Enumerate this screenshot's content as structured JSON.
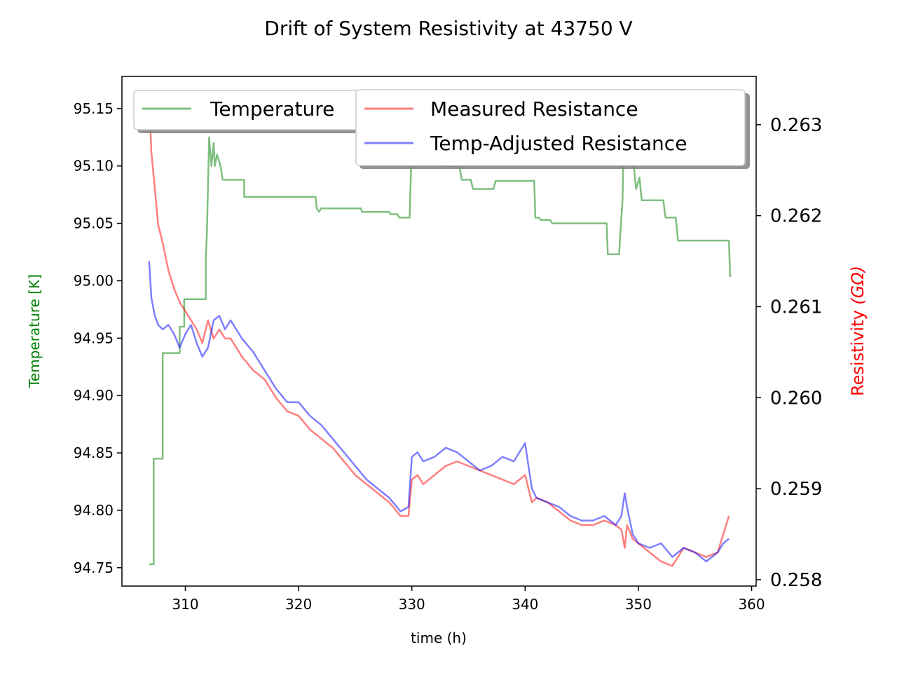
{
  "chart_data": {
    "type": "line",
    "title": "Drift of System Resistivity at 43750 V",
    "xlabel": "time (h)",
    "ylabel_left": "Temperature [K]",
    "ylabel_right_main": "Resistivity ",
    "ylabel_right_unit": "(GΩ)",
    "xlim": [
      304.4,
      360.4
    ],
    "ylim_left": [
      94.734,
      95.178
    ],
    "ylim_right": [
      0.25793,
      0.26353
    ],
    "x_ticks": [
      310,
      320,
      330,
      340,
      350,
      360
    ],
    "y_ticks_left": [
      94.75,
      94.8,
      94.85,
      94.9,
      94.95,
      95.0,
      95.05,
      95.1,
      95.15
    ],
    "y_ticks_right": [
      0.258,
      0.259,
      0.26,
      0.261,
      0.262,
      0.263
    ],
    "x_tick_labels": [
      "310",
      "320",
      "330",
      "340",
      "350",
      "360"
    ],
    "y_tick_labels_left": [
      "94.75",
      "94.80",
      "94.85",
      "94.90",
      "94.95",
      "95.00",
      "95.05",
      "95.10",
      "95.15"
    ],
    "y_tick_labels_right": [
      "0.258",
      "0.259",
      "0.260",
      "0.261",
      "0.262",
      "0.263"
    ],
    "colors": {
      "temperature": "#008000",
      "measured": "#ff0000",
      "adjusted": "#0000ff",
      "left_label": "#008000",
      "right_label": "#ff0000"
    },
    "legend_left": {
      "position": "upper-left",
      "entries": [
        "Temperature"
      ]
    },
    "legend_right": {
      "position": "upper-right",
      "entries": [
        "Measured Resistance",
        "Temp-Adjusted Resistance"
      ]
    },
    "series": [
      {
        "name": "Temperature",
        "axis": "left",
        "x": [
          306.8,
          307.2,
          307.2,
          308.0,
          308.0,
          309.5,
          309.5,
          309.9,
          309.9,
          310.3,
          310.3,
          311.8,
          311.8,
          311.9,
          312.1,
          312.3,
          312.5,
          312.6,
          312.8,
          313.1,
          313.3,
          313.5,
          313.7,
          315.2,
          315.2,
          321.5,
          321.6,
          321.8,
          322.0,
          322.2,
          325.5,
          325.6,
          328.0,
          328.1,
          328.7,
          328.9,
          329.8,
          330.0,
          330.3,
          330.5,
          332.5,
          332.7,
          334.2,
          334.4,
          335.2,
          335.4,
          337.2,
          337.4,
          340.8,
          340.9,
          341.2,
          341.4,
          342.2,
          342.4,
          347.2,
          347.3,
          348.3,
          348.4,
          348.6,
          348.7,
          349.2,
          349.4,
          349.6,
          349.8,
          350.1,
          350.3,
          350.5,
          350.7,
          352.2,
          352.4,
          353.3,
          353.5,
          358.0,
          358.1,
          358.2
        ],
        "y": [
          94.753,
          94.753,
          94.845,
          94.845,
          94.937,
          94.937,
          94.96,
          94.96,
          94.984,
          94.984,
          94.984,
          94.984,
          95.02,
          95.04,
          95.125,
          95.1,
          95.12,
          95.1,
          95.11,
          95.1,
          95.088,
          95.088,
          95.088,
          95.088,
          95.073,
          95.073,
          95.063,
          95.06,
          95.063,
          95.063,
          95.063,
          95.06,
          95.06,
          95.058,
          95.058,
          95.055,
          95.055,
          95.12,
          95.13,
          95.12,
          95.11,
          95.1,
          95.1,
          95.088,
          95.088,
          95.08,
          95.08,
          95.087,
          95.087,
          95.055,
          95.055,
          95.053,
          95.053,
          95.05,
          95.05,
          95.023,
          95.023,
          95.04,
          95.07,
          95.12,
          95.11,
          95.1,
          95.1,
          95.08,
          95.09,
          95.07,
          95.07,
          95.07,
          95.07,
          95.055,
          95.055,
          95.035,
          95.035,
          95.004,
          95.004
        ]
      },
      {
        "name": "Measured Resistance",
        "axis": "right",
        "x": [
          306.8,
          307.0,
          307.3,
          307.6,
          308.0,
          308.5,
          309.0,
          309.5,
          310.0,
          310.5,
          311.0,
          311.5,
          312.0,
          312.5,
          313.0,
          313.5,
          314.0,
          315.0,
          316.0,
          317.0,
          318.0,
          319.0,
          320.0,
          321.0,
          322.0,
          323.0,
          324.0,
          325.0,
          326.0,
          327.0,
          328.0,
          329.0,
          329.7,
          330.0,
          330.5,
          331.0,
          332.0,
          333.0,
          334.0,
          335.0,
          336.0,
          337.0,
          338.0,
          339.0,
          340.0,
          340.6,
          341.0,
          342.0,
          343.0,
          344.0,
          345.0,
          346.0,
          347.0,
          348.0,
          348.5,
          348.8,
          349.0,
          349.5,
          350.0,
          351.0,
          352.0,
          353.0,
          354.0,
          355.0,
          356.0,
          357.0,
          357.5,
          358.0
        ],
        "y": [
          0.2633,
          0.2627,
          0.2623,
          0.2619,
          0.2617,
          0.2614,
          0.2612,
          0.26105,
          0.26095,
          0.26085,
          0.26075,
          0.2606,
          0.26085,
          0.26065,
          0.26075,
          0.26065,
          0.26065,
          0.26045,
          0.2603,
          0.2602,
          0.26,
          0.25985,
          0.2598,
          0.25965,
          0.25955,
          0.25945,
          0.2593,
          0.25915,
          0.25905,
          0.25895,
          0.25885,
          0.2587,
          0.2587,
          0.2591,
          0.25915,
          0.25905,
          0.25915,
          0.25925,
          0.2593,
          0.25925,
          0.2592,
          0.25915,
          0.2591,
          0.25905,
          0.25915,
          0.25885,
          0.2589,
          0.25885,
          0.25875,
          0.25865,
          0.2586,
          0.2586,
          0.25865,
          0.2586,
          0.25855,
          0.25835,
          0.2586,
          0.25845,
          0.2584,
          0.2583,
          0.2582,
          0.25815,
          0.25835,
          0.2583,
          0.25825,
          0.2583,
          0.2585,
          0.2587
        ]
      },
      {
        "name": "Temp-Adjusted Resistance",
        "axis": "right",
        "x": [
          306.8,
          307.0,
          307.3,
          307.6,
          308.0,
          308.5,
          309.0,
          309.5,
          310.0,
          310.5,
          311.0,
          311.5,
          312.0,
          312.5,
          313.0,
          313.5,
          314.0,
          315.0,
          316.0,
          317.0,
          318.0,
          319.0,
          320.0,
          321.0,
          322.0,
          323.0,
          324.0,
          325.0,
          326.0,
          327.0,
          328.0,
          329.0,
          329.7,
          330.0,
          330.5,
          331.0,
          332.0,
          333.0,
          334.0,
          335.0,
          336.0,
          337.0,
          338.0,
          339.0,
          340.0,
          340.6,
          341.0,
          342.0,
          343.0,
          344.0,
          345.0,
          346.0,
          347.0,
          348.0,
          348.5,
          348.8,
          349.0,
          349.5,
          350.0,
          351.0,
          352.0,
          353.0,
          354.0,
          355.0,
          356.0,
          357.0,
          357.5,
          358.0
        ],
        "y": [
          0.2615,
          0.2611,
          0.2609,
          0.2608,
          0.26075,
          0.2608,
          0.2607,
          0.26055,
          0.2607,
          0.2608,
          0.2606,
          0.26045,
          0.26055,
          0.26085,
          0.2609,
          0.26075,
          0.26085,
          0.26065,
          0.2605,
          0.2603,
          0.2601,
          0.25995,
          0.25995,
          0.2598,
          0.2597,
          0.25955,
          0.2594,
          0.25925,
          0.2591,
          0.259,
          0.2589,
          0.25875,
          0.2588,
          0.25935,
          0.2594,
          0.2593,
          0.25935,
          0.25945,
          0.2594,
          0.2593,
          0.2592,
          0.25925,
          0.25935,
          0.2593,
          0.2595,
          0.259,
          0.2589,
          0.25885,
          0.2588,
          0.2587,
          0.25865,
          0.25865,
          0.2587,
          0.2586,
          0.2587,
          0.25895,
          0.2588,
          0.2585,
          0.2584,
          0.25835,
          0.2584,
          0.25825,
          0.25835,
          0.2583,
          0.2582,
          0.2583,
          0.2584,
          0.25845
        ]
      }
    ]
  }
}
